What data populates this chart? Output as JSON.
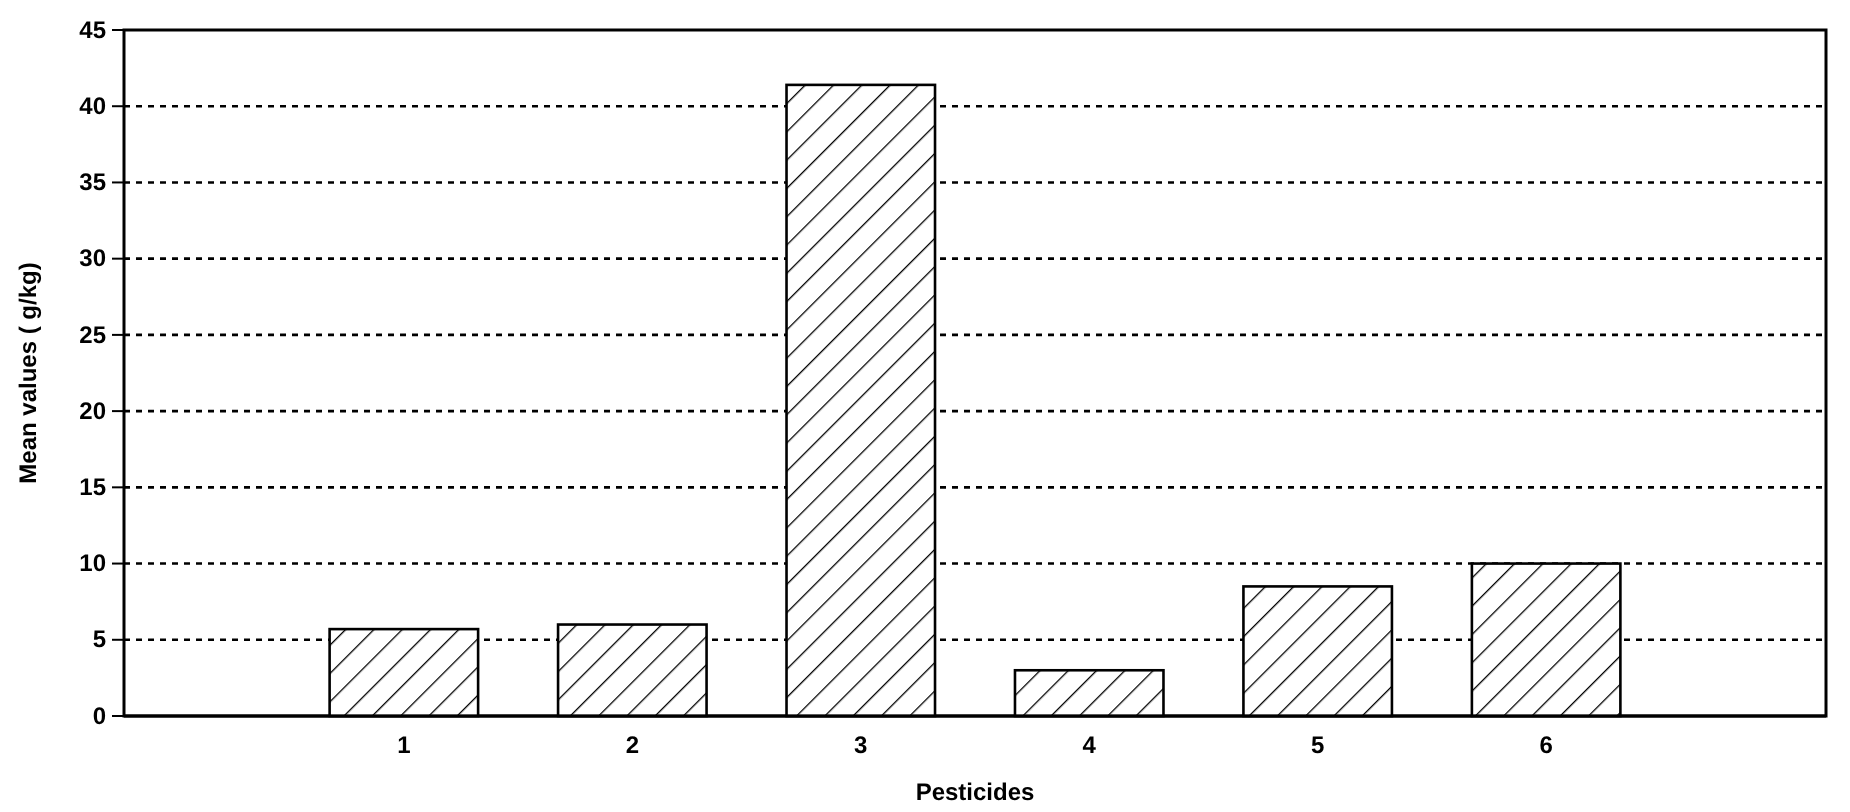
{
  "chart_data": {
    "type": "bar",
    "xlabel": "Pesticides",
    "ylabel": "Mean values ( g/kg)",
    "categories": [
      "1",
      "2",
      "3",
      "4",
      "5",
      "6"
    ],
    "values": [
      5.7,
      6,
      41.4,
      3,
      8.5,
      10
    ],
    "color": "#000000",
    "ylim": [
      0,
      45
    ],
    "yticks": [
      0,
      5,
      10,
      15,
      20,
      25,
      30,
      35,
      40,
      45
    ],
    "grid": "y",
    "line_style": "dotted"
  }
}
